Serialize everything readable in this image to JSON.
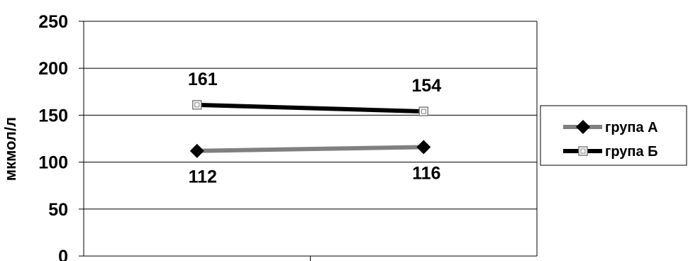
{
  "chart_data": {
    "type": "line",
    "title": "",
    "xlabel": "",
    "ylabel": "мкмол/л",
    "ylim": [
      0,
      250
    ],
    "yticks": [
      0,
      50,
      100,
      150,
      200,
      250
    ],
    "ytick_labels": [
      "0",
      "50",
      "100",
      "150",
      "200",
      "250"
    ],
    "grid": true,
    "legend_position": "right",
    "categories": [
      "",
      ""
    ],
    "series": [
      {
        "name": "група А",
        "values": [
          112,
          116
        ],
        "labels": [
          "112",
          "116"
        ],
        "color": "#808080",
        "marker": "diamond"
      },
      {
        "name": "група Б",
        "values": [
          161,
          154
        ],
        "labels": [
          "161",
          "154"
        ],
        "color": "#000000",
        "marker": "square-open"
      }
    ]
  }
}
